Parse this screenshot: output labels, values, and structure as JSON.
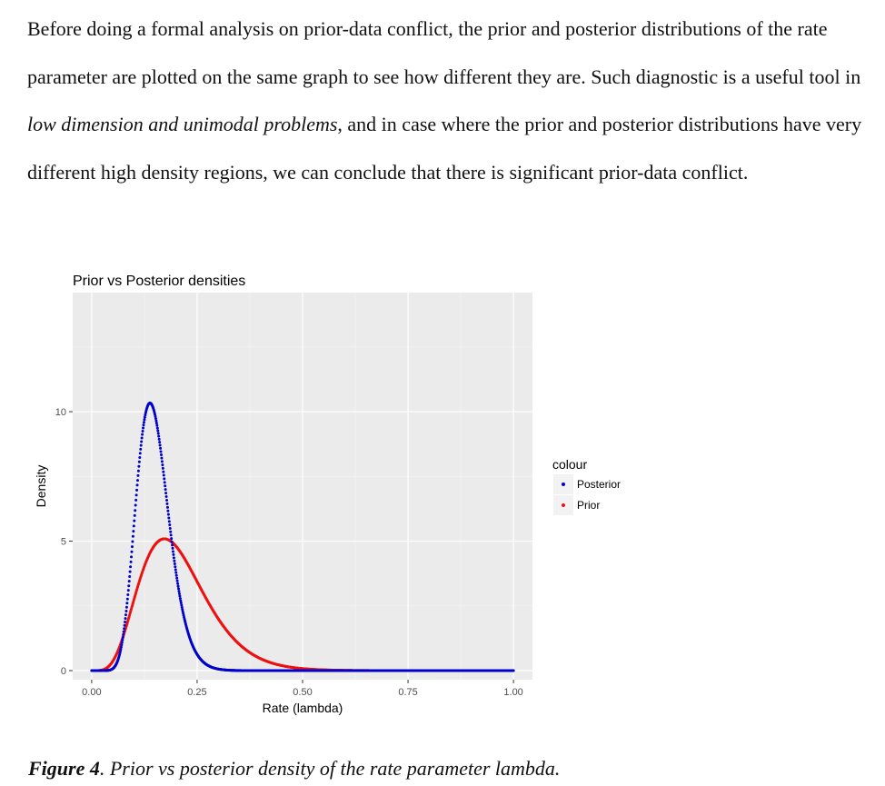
{
  "paragraph": {
    "part1": "Before doing a formal analysis on prior-data conflict, the prior and posterior distributions of the rate parameter are plotted on the same graph to see how different they are. Such diagnostic is a useful tool in ",
    "emphasis": "low dimension and unimodal problems",
    "part2": ", and in case where the prior and posterior distributions have very different high density regions, we can conclude that there is significant prior-data conflict."
  },
  "chart_data": {
    "type": "scatter",
    "title": "Prior vs Posterior densities",
    "xlabel": "Rate (lambda)",
    "ylabel": "Density",
    "xlim": [
      -0.045,
      1.045
    ],
    "ylim": [
      -0.35,
      14.6
    ],
    "x_ticks": [
      0.0,
      0.25,
      0.5,
      0.75,
      1.0
    ],
    "x_tick_labels": [
      "0.00",
      "0.25",
      "0.50",
      "0.75",
      "1.00"
    ],
    "y_ticks": [
      0,
      5,
      10
    ],
    "y_tick_labels": [
      "0",
      "5",
      "10"
    ],
    "grid": true,
    "legend": {
      "title": "colour",
      "placement": "right"
    },
    "series": [
      {
        "name": "Posterior",
        "color": "#0000cc",
        "distribution": "gamma",
        "shape": 14.0,
        "rate": 94.0,
        "x_range": [
          0.0,
          1.0
        ],
        "points": 1001
      },
      {
        "name": "Prior",
        "color": "#ee1111",
        "distribution": "gamma",
        "shape": 6.0,
        "rate": 29.0,
        "x_range": [
          0.0,
          1.0
        ],
        "points": 1001
      }
    ]
  },
  "caption": {
    "label": "Figure 4",
    "text": ". Prior vs posterior density of the rate parameter lambda."
  }
}
